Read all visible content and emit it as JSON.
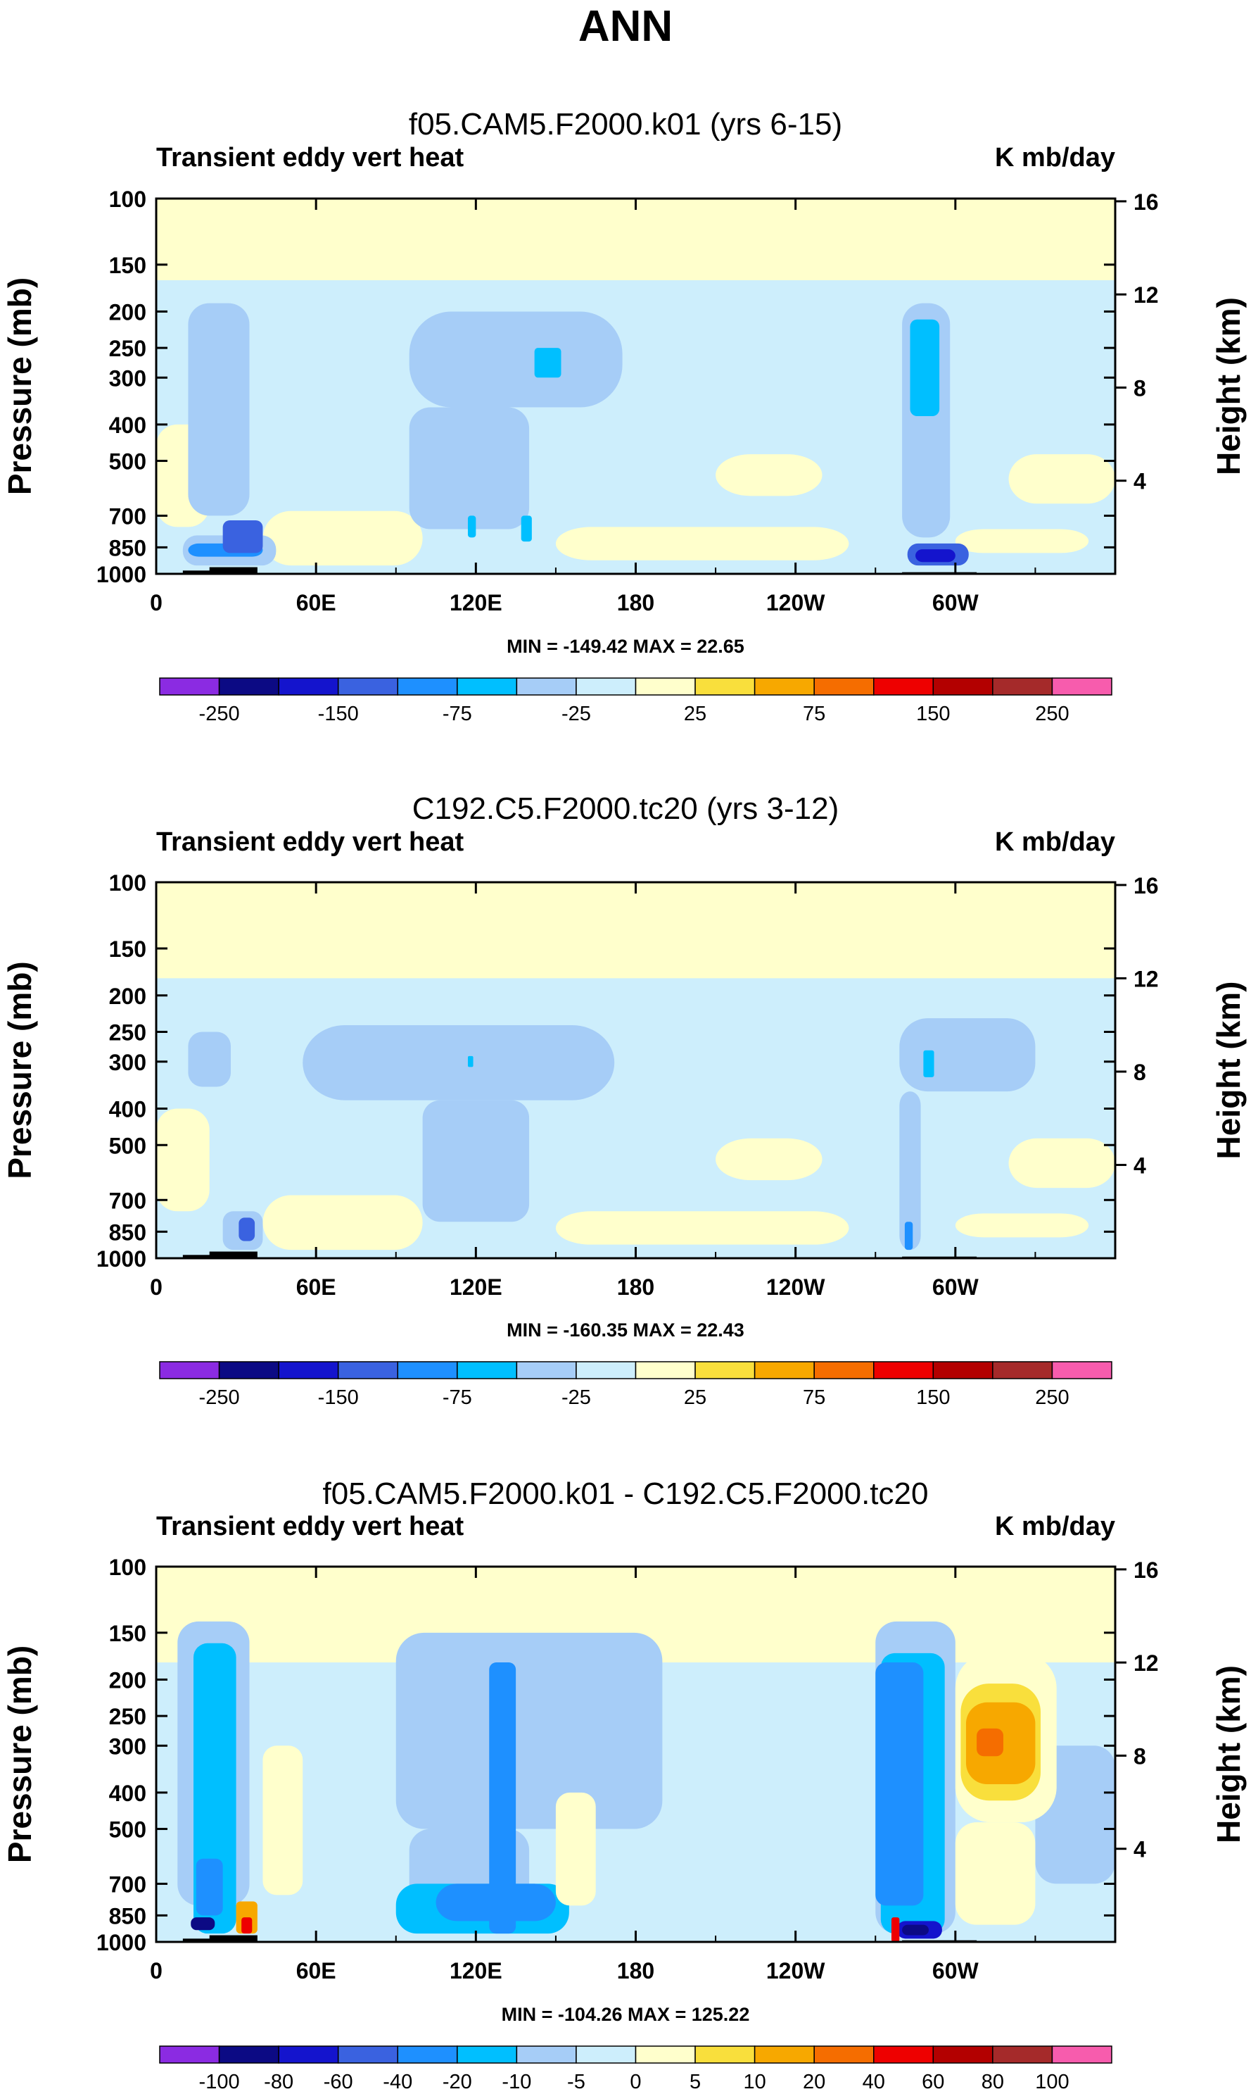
{
  "main_title": "ANN",
  "colors": {
    "palette": [
      "#8b2be2",
      "#0c0a84",
      "#1414cd",
      "#3a62e0",
      "#1e90ff",
      "#00bfff",
      "#a6cdf7",
      "#cdeefc",
      "#ffffcc",
      "#f9df3c",
      "#f7a800",
      "#f56d00",
      "#ee0000",
      "#b30000",
      "#a52a2a",
      "#f75cad"
    ]
  },
  "chart_data": [
    {
      "type": "heatmap",
      "title": "f05.CAM5.F2000.k01 (yrs 6-15)",
      "left_label": "Transient eddy vert heat",
      "right_label": "K mb/day",
      "ylabel": "Pressure (mb)",
      "y2label": "Height (km)",
      "xlabel": "",
      "y_ticks": [
        "100",
        "150",
        "200",
        "250",
        "300",
        "400",
        "500",
        "700",
        "850",
        "1000"
      ],
      "y2_ticks": [
        "16",
        "12",
        "8",
        "4"
      ],
      "x_ticks": [
        "0",
        "60E",
        "120E",
        "180",
        "120W",
        "60W"
      ],
      "x_range": [
        0,
        360
      ],
      "y_range_mb": [
        100,
        1000
      ],
      "stats": "MIN = -149.42  MAX =  22.65",
      "colorbar_labels": [
        "-250",
        "-150",
        "-75",
        "-25",
        "25",
        "75",
        "150",
        "250"
      ],
      "colorbar_levels": [
        -300,
        -250,
        -200,
        -150,
        -100,
        -75,
        -50,
        -25,
        0,
        25,
        50,
        75,
        100,
        150,
        200,
        250
      ],
      "min": -149.42,
      "max": 22.65
    },
    {
      "type": "heatmap",
      "title": "C192.C5.F2000.tc20 (yrs 3-12)",
      "left_label": "Transient eddy vert heat",
      "right_label": "K mb/day",
      "ylabel": "Pressure (mb)",
      "y2label": "Height (km)",
      "xlabel": "",
      "y_ticks": [
        "100",
        "150",
        "200",
        "250",
        "300",
        "400",
        "500",
        "700",
        "850",
        "1000"
      ],
      "y2_ticks": [
        "16",
        "12",
        "8",
        "4"
      ],
      "x_ticks": [
        "0",
        "60E",
        "120E",
        "180",
        "120W",
        "60W"
      ],
      "x_range": [
        0,
        360
      ],
      "y_range_mb": [
        100,
        1000
      ],
      "stats": "MIN = -160.35  MAX =  22.43",
      "colorbar_labels": [
        "-250",
        "-150",
        "-75",
        "-25",
        "25",
        "75",
        "150",
        "250"
      ],
      "colorbar_levels": [
        -300,
        -250,
        -200,
        -150,
        -100,
        -75,
        -50,
        -25,
        0,
        25,
        50,
        75,
        100,
        150,
        200,
        250
      ],
      "min": -160.35,
      "max": 22.43
    },
    {
      "type": "heatmap",
      "title": "f05.CAM5.F2000.k01 - C192.C5.F2000.tc20",
      "left_label": "Transient eddy vert heat",
      "right_label": "K mb/day",
      "ylabel": "Pressure (mb)",
      "y2label": "Height (km)",
      "xlabel": "",
      "y_ticks": [
        "100",
        "150",
        "200",
        "250",
        "300",
        "400",
        "500",
        "700",
        "850",
        "1000"
      ],
      "y2_ticks": [
        "16",
        "12",
        "8",
        "4"
      ],
      "x_ticks": [
        "0",
        "60E",
        "120E",
        "180",
        "120W",
        "60W"
      ],
      "x_range": [
        0,
        360
      ],
      "y_range_mb": [
        100,
        1000
      ],
      "stats": "MIN = -104.26  MAX = 125.22",
      "colorbar_labels": [
        "-100",
        "-80",
        "-60",
        "-40",
        "-20",
        "-10",
        "-5",
        "0",
        "5",
        "10",
        "20",
        "40",
        "60",
        "80",
        "100"
      ],
      "min": -104.26,
      "max": 125.22
    }
  ]
}
